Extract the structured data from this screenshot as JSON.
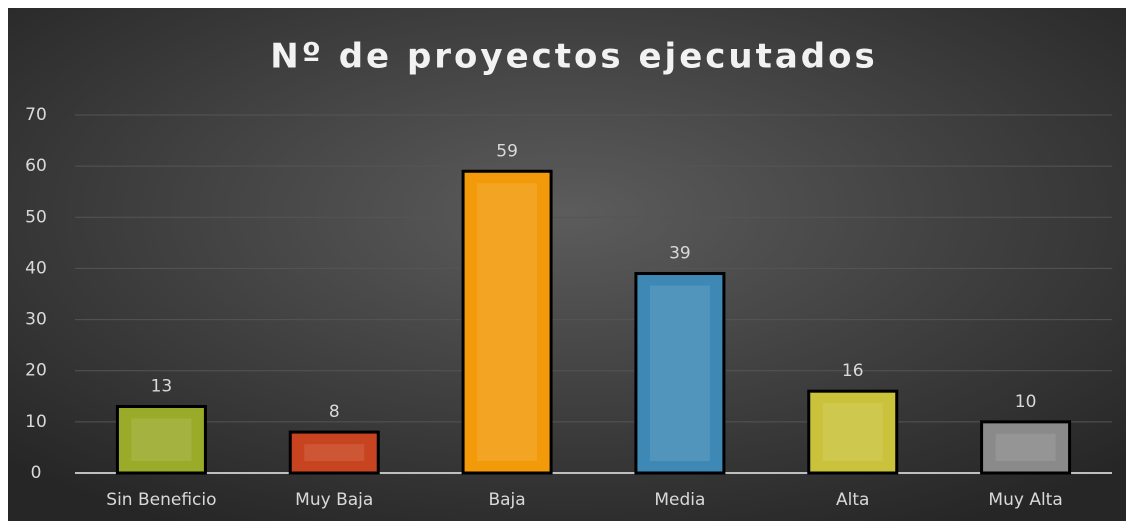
{
  "chart_data": {
    "type": "bar",
    "title": "Nº de proyectos ejecutados",
    "categories": [
      "Sin Beneficio",
      "Muy Baja",
      "Baja",
      "Media",
      "Alta",
      "Muy Alta"
    ],
    "values": [
      13,
      8,
      59,
      39,
      16,
      10
    ],
    "colors": [
      "#9aab2a",
      "#c8431f",
      "#f39a0b",
      "#3e88b5",
      "#c9c23a",
      "#8a8a8a"
    ],
    "ylim": [
      0,
      70
    ],
    "yticks": [
      0,
      10,
      20,
      30,
      40,
      50,
      60,
      70
    ],
    "grid": true
  }
}
